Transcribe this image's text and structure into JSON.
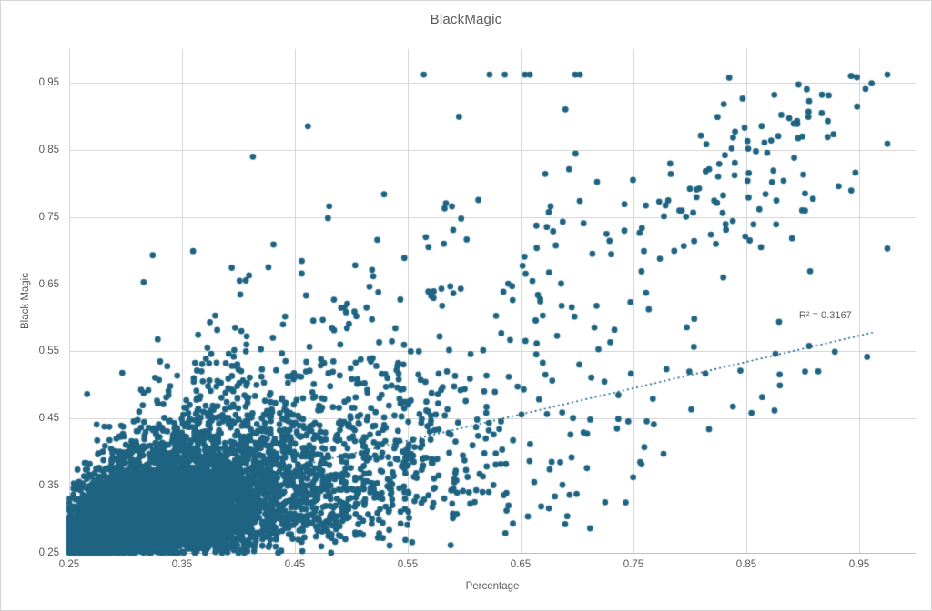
{
  "frame": {
    "background": "#FFFFFF",
    "border_color": "#D4D4D4"
  },
  "chart_data": {
    "type": "scatter",
    "title": "BlackMagic",
    "xlabel": "Percentage",
    "ylabel": "Black Magic",
    "xlim": [
      0.25,
      1.0
    ],
    "ylim": [
      0.25,
      1.0
    ],
    "grid": true,
    "legend": "none",
    "x_ticks": [
      {
        "value": 0.25,
        "label": "0.25"
      },
      {
        "value": 0.35,
        "label": "0.35"
      },
      {
        "value": 0.45,
        "label": "0.45"
      },
      {
        "value": 0.55,
        "label": "0.55"
      },
      {
        "value": 0.65,
        "label": "0.65"
      },
      {
        "value": 0.75,
        "label": "0.75"
      },
      {
        "value": 0.85,
        "label": "0.85"
      },
      {
        "value": 0.95,
        "label": "0.95"
      }
    ],
    "y_ticks": [
      {
        "value": 0.25,
        "label": "0.25"
      },
      {
        "value": 0.35,
        "label": "0.35"
      },
      {
        "value": 0.45,
        "label": "0.45"
      },
      {
        "value": 0.55,
        "label": "0.55"
      },
      {
        "value": 0.65,
        "label": "0.65"
      },
      {
        "value": 0.75,
        "label": "0.75"
      },
      {
        "value": 0.85,
        "label": "0.85"
      },
      {
        "value": 0.95,
        "label": "0.95"
      }
    ],
    "point_color": "#1E6482",
    "gridline_color": "#D9D9D9",
    "axisline_color": "#BFBFBF",
    "text_color": "#595959",
    "point_radius_px": 3.4,
    "description": "Dense positively-correlated cloud truncated at 0.25 on both axes; solid mass in lower-left thinning toward a sparse diagonal band reaching (0.96, 0.96).",
    "cloud": {
      "seed": 1337,
      "n": 7000,
      "x_mu": 0.115,
      "x_sigma": 0.6,
      "x_shift": 0.03,
      "y_mu": 0.105,
      "y_sigma_base": 0.55,
      "y_sigma_scale": [
        0.78,
        1.05
      ],
      "y_shift": 0.04,
      "rho": 0.55,
      "floor": 0.25,
      "x_max": 0.975,
      "y_max": 0.962,
      "ramp_x0": 0.68,
      "ramp_slope": 1.05,
      "ramp_noise": 0.05
    },
    "tail": {
      "n": 95,
      "x_min": 0.66,
      "x_span": 0.3,
      "x_pow": 1.3,
      "y_offset": -0.04,
      "y_noise": 0.075,
      "y_min": 0.48,
      "y_max": 0.96
    },
    "highlight_points": [
      [
        0.948,
        0.958
      ],
      [
        0.961,
        0.949
      ],
      [
        0.917,
        0.932
      ],
      [
        0.923,
        0.931
      ],
      [
        0.905,
        0.899
      ],
      [
        0.895,
        0.893
      ],
      [
        0.881,
        0.902
      ],
      [
        0.888,
        0.897
      ],
      [
        0.892,
        0.889
      ],
      [
        0.83,
        0.918
      ],
      [
        0.84,
        0.877
      ],
      [
        0.922,
        0.869
      ],
      [
        0.837,
        0.852
      ],
      [
        0.831,
        0.842
      ],
      [
        0.826,
        0.829
      ],
      [
        0.817,
        0.821
      ],
      [
        0.814,
        0.818
      ],
      [
        0.783,
        0.814
      ],
      [
        0.8,
        0.792
      ],
      [
        0.806,
        0.791
      ],
      [
        0.874,
        0.819
      ],
      [
        0.883,
        0.804
      ],
      [
        0.902,
        0.785
      ],
      [
        0.909,
        0.777
      ],
      [
        0.851,
        0.804
      ],
      [
        0.867,
        0.784
      ],
      [
        0.852,
        0.779
      ],
      [
        0.824,
        0.771
      ],
      [
        0.829,
        0.756
      ],
      [
        0.838,
        0.744
      ],
      [
        0.832,
        0.731
      ],
      [
        0.849,
        0.721
      ],
      [
        0.853,
        0.715
      ],
      [
        0.863,
        0.705
      ],
      [
        0.742,
        0.769
      ],
      [
        0.761,
        0.767
      ],
      [
        0.777,
        0.751
      ],
      [
        0.693,
        0.821
      ],
      [
        0.324,
        0.693
      ],
      [
        0.316,
        0.653
      ],
      [
        0.401,
        0.655
      ],
      [
        0.523,
        0.716
      ],
      [
        0.566,
        0.72
      ],
      [
        0.547,
        0.689
      ],
      [
        0.664,
        0.737
      ],
      [
        0.879,
        0.594
      ]
    ],
    "trendline": {
      "style": "dotted",
      "color": "#1E6482",
      "width": 1.7,
      "dash": [
        2,
        3.2
      ],
      "x1": 0.25,
      "y1": 0.3,
      "x2": 0.962,
      "y2": 0.578,
      "label": "R² = 0.3167",
      "label_x": 0.92,
      "label_y": 0.603
    }
  }
}
